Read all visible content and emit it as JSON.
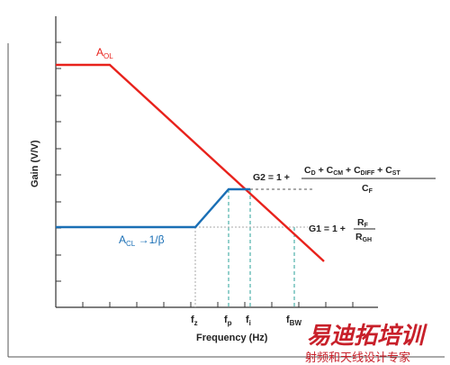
{
  "chart_data": {
    "type": "line",
    "title": "",
    "xlabel": "Frequency (Hz)",
    "ylabel": "Gain (V/V)",
    "x_ticks": [
      "f_z",
      "f_p",
      "f_i",
      "f_BW"
    ],
    "series": [
      {
        "name": "A_OL",
        "color": "#e8221c",
        "label": {
          "main": "A",
          "sub": "OL"
        }
      },
      {
        "name": "A_CL → 1/β",
        "color": "#1a6fb5",
        "label": {
          "main": "A",
          "sub": "CL",
          "suffix": " →1/β"
        }
      }
    ],
    "annotations": {
      "G2": {
        "prefix": "G2 = 1 +",
        "numerator": [
          {
            "main": "C",
            "sub": "D"
          },
          {
            "main": " + C",
            "sub": "CM"
          },
          {
            "main": " + C",
            "sub": "DIFF"
          },
          {
            "main": " + C",
            "sub": "ST"
          }
        ],
        "denominator": {
          "main": "C",
          "sub": "F"
        }
      },
      "G1": {
        "prefix": "G1 = 1 +",
        "numerator": {
          "main": "R",
          "sub": "F"
        },
        "denominator": {
          "main": "R",
          "sub": "GH"
        }
      }
    },
    "tick_labels": {
      "fz": {
        "main": "f",
        "sub": "z"
      },
      "fp": {
        "main": "f",
        "sub": "p"
      },
      "fi": {
        "main": "f",
        "sub": "i"
      },
      "fbw": {
        "main": "f",
        "sub": "BW"
      }
    },
    "grid": false,
    "axis_color": "#333333",
    "guide_color": "#2aa198"
  },
  "watermark": {
    "main": "易迪拓培训",
    "sub": "射频和天线设计专家",
    "color": "#c8202a"
  }
}
